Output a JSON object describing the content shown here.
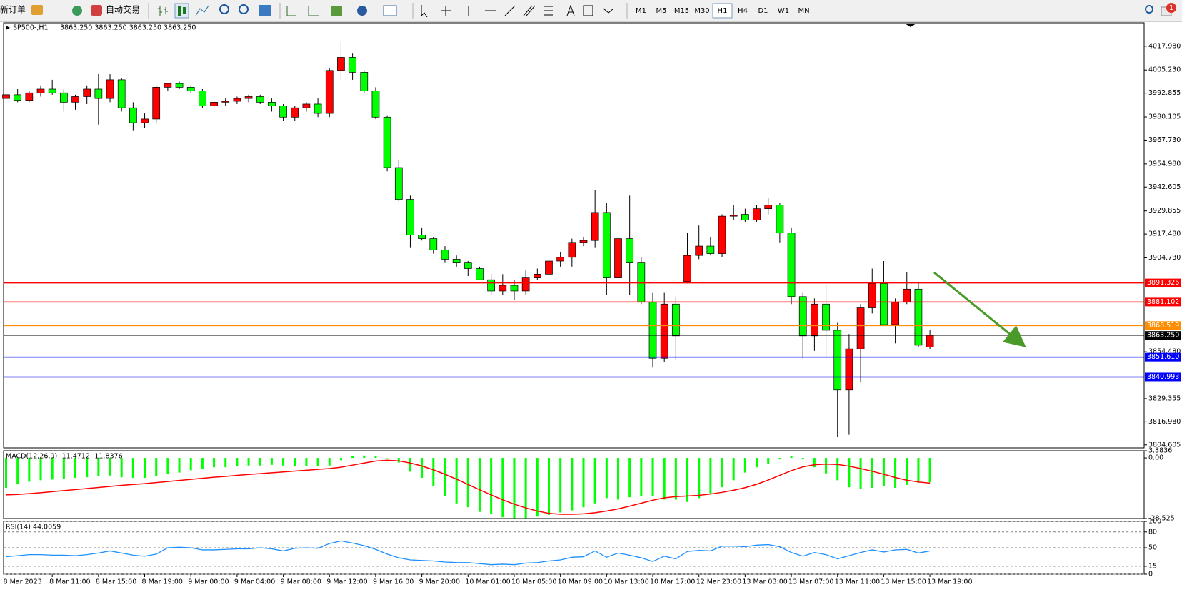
{
  "toolbar": {
    "new_order": "新订单",
    "auto_trading": "自动交易",
    "timeframes": [
      "M1",
      "M5",
      "M15",
      "M30",
      "H1",
      "H4",
      "D1",
      "W1",
      "MN"
    ],
    "active_timeframe": "H1",
    "notifications": 1
  },
  "chart_data": [
    {
      "type": "candlestick",
      "title": "SP500-,H1",
      "quote": "3863.250 3863.250 3863.250 3863.250",
      "up_color": "#ff0000",
      "down_color": "#00ff00",
      "grid": false,
      "ylim": [
        3803.0,
        4030.5
      ],
      "yticks": [
        {
          "value": 4017.98,
          "label": "4017.980"
        },
        {
          "value": 4005.23,
          "label": "4005.230"
        },
        3992.855,
        3980.105,
        {
          "value": 3967.73,
          "label": "3967.730"
        },
        {
          "value": 3954.98,
          "label": "3954.980"
        },
        3942.605,
        3929.855,
        {
          "value": 3917.48,
          "label": "3917.480"
        },
        {
          "value": 3904.73,
          "label": "3904.730"
        },
        {
          "value": 3854.48,
          "label": "3854.480"
        },
        3829.355,
        {
          "value": 3816.98,
          "label": "3816.980"
        },
        3804.605
      ],
      "categories": [
        "8 Mar 2023",
        null,
        null,
        null,
        "8 Mar 11:00",
        null,
        null,
        null,
        "8 Mar 15:00",
        null,
        null,
        null,
        "8 Mar 19:00",
        null,
        null,
        null,
        "9 Mar 00:00",
        null,
        null,
        null,
        "9 Mar 04:00",
        null,
        null,
        null,
        "9 Mar 08:00",
        null,
        null,
        null,
        "9 Mar 12:00",
        null,
        null,
        null,
        "9 Mar 16:00",
        null,
        null,
        null,
        "9 Mar 20:00",
        null,
        null,
        null,
        "10 Mar 01:00",
        null,
        null,
        null,
        "10 Mar 05:00",
        null,
        null,
        null,
        "10 Mar 09:00",
        null,
        null,
        null,
        "10 Mar 13:00",
        null,
        null,
        null,
        "10 Mar 17:00",
        null,
        null,
        null,
        "12 Mar 23:00",
        null,
        null,
        null,
        "13 Mar 03:00",
        null,
        null,
        null,
        "13 Mar 07:00",
        null,
        null,
        null,
        "13 Mar 11:00",
        null,
        null,
        null,
        "13 Mar 15:00",
        null,
        null,
        null,
        "13 Mar 19:00"
      ],
      "open": [
        3990,
        3992,
        3989,
        3993,
        3995,
        3993,
        3988,
        3991,
        3995,
        3990,
        4000,
        3985,
        3977,
        3979,
        3996,
        3998,
        3996,
        3994,
        3986,
        3988,
        3988.5,
        3990,
        3991,
        3988,
        3986,
        3980,
        3985,
        3987,
        3982,
        4005,
        4012,
        4004,
        3994,
        3980,
        3953,
        3936,
        3917,
        3915,
        3909,
        3904,
        3902,
        3899,
        3893,
        3887,
        3890,
        3887,
        3894,
        3896,
        3903,
        3905,
        3913,
        3914,
        3929,
        3894,
        3915,
        3902,
        3881,
        3851,
        3880,
        3892,
        3906,
        3911,
        3907,
        3927,
        3928,
        3925,
        3931,
        3933,
        3918,
        3884,
        3863,
        3880,
        3866,
        3834,
        3856,
        3878,
        3891,
        3869,
        3881,
        3888,
        3857
      ],
      "high": [
        3994,
        3995,
        3994,
        3997,
        4000,
        3995,
        3992,
        3997,
        4003,
        4003,
        4001,
        3988,
        3982,
        3997,
        3998,
        3999,
        3997,
        3995,
        3989,
        3990,
        3991,
        3992,
        3992,
        3990,
        3987,
        3986,
        3988,
        3990,
        4006,
        4020,
        4014,
        4005,
        3996,
        3981,
        3957,
        3938,
        3921,
        3916,
        3911,
        3906,
        3903,
        3900,
        3896,
        3896,
        3893,
        3898,
        3899,
        3906,
        3908,
        3915,
        3916,
        3941,
        3934,
        3916,
        3938,
        3905,
        3886,
        3886,
        3884,
        3918,
        3922,
        3916,
        3928,
        3933,
        3931,
        3933,
        3937,
        3934,
        3921,
        3886,
        3883,
        3890,
        3870,
        3864,
        3880,
        3899,
        3903,
        3883,
        3897,
        3892,
        3866
      ],
      "low": [
        3987,
        3988,
        3988,
        3991,
        3992,
        3983,
        3984,
        3987,
        3976,
        3988,
        3983,
        3973,
        3974,
        3977,
        3994,
        3995,
        3993,
        3985,
        3985,
        3986,
        3987,
        3988,
        3987,
        3983,
        3978,
        3978,
        3983,
        3980,
        3980,
        4000,
        4000,
        3993,
        3979,
        3951,
        3935,
        3910,
        3914,
        3907,
        3902,
        3900,
        3895,
        3893,
        3885,
        3885,
        3882,
        3885,
        3893,
        3894,
        3900,
        3900,
        3911,
        3910,
        3885,
        3886,
        3885,
        3880,
        3846,
        3849,
        3850,
        3891,
        3904,
        3906,
        3905,
        3925,
        3924,
        3924,
        3928,
        3913,
        3880,
        3851,
        3855,
        3851,
        3809,
        3810,
        3838,
        3875,
        3869,
        3859,
        3880,
        3857,
        3856
      ],
      "close": [
        3992,
        3989,
        3993,
        3995,
        3993,
        3988,
        3991,
        3995,
        3990,
        4000,
        3985,
        3977,
        3979,
        3996,
        3998,
        3996,
        3994,
        3986,
        3988,
        3988.5,
        3990,
        3991,
        3988,
        3986,
        3980,
        3985,
        3987,
        3982,
        4005,
        4012,
        4004,
        3994,
        3980,
        3953,
        3936,
        3917,
        3915,
        3909,
        3904,
        3902,
        3899,
        3893,
        3887,
        3890,
        3887,
        3894,
        3896,
        3903,
        3905,
        3913,
        3914,
        3929,
        3894,
        3915,
        3902,
        3881,
        3851,
        3880,
        3863,
        3906,
        3911,
        3907,
        3927,
        3927.5,
        3925,
        3931,
        3933,
        3918,
        3884,
        3863,
        3880,
        3866,
        3834,
        3856,
        3878,
        3891,
        3869,
        3881,
        3888,
        3858,
        3863.25
      ],
      "levels": [
        {
          "value": 3891.326,
          "label": "3891.326",
          "color": "#ff0000"
        },
        {
          "value": 3881.102,
          "label": "3881.102",
          "color": "#ff0000"
        },
        {
          "value": 3868.519,
          "label": "3868.519",
          "color": "#ff8c00"
        },
        {
          "value": 3863.25,
          "label": "3863.250",
          "color": "#000000"
        },
        {
          "value": 3851.61,
          "label": "3851.610",
          "color": "#0000ff"
        },
        {
          "value": 3840.993,
          "label": "3840.993",
          "color": "#0000ff"
        }
      ]
    },
    {
      "type": "macd",
      "title": "MACD(12,26,9) -11.4712 -11.8376",
      "color": "#00ff00",
      "signal_color": "#ff0000",
      "grid": false,
      "ylim": [
        -28.525,
        3.3836
      ],
      "yticks": [
        3.3836,
        {
          "value": 0,
          "label": "0.00"
        },
        -28.525
      ],
      "values": [
        -14.1,
        -12.3,
        -11.2,
        -10.5,
        -10.2,
        -9.8,
        -9.4,
        -9.1,
        -8.7,
        -8.3,
        -9.1,
        -9.4,
        -9.4,
        -8.7,
        -7.6,
        -6.9,
        -5.8,
        -5.1,
        -4.4,
        -4.4,
        -4.0,
        -3.6,
        -3.6,
        -3.3,
        -3.6,
        -4.0,
        -4.0,
        -4.0,
        -3.6,
        -1.1,
        0.7,
        1.1,
        0.7,
        0,
        -2.2,
        -6.5,
        -9.4,
        -13.4,
        -17.8,
        -21.4,
        -23.2,
        -25.4,
        -26.5,
        -27.9,
        -28.3,
        -28.3,
        -27.6,
        -26.8,
        -25.7,
        -24.7,
        -23.2,
        -21.4,
        -18.9,
        -19.6,
        -18.5,
        -18.1,
        -18.1,
        -19.6,
        -19.6,
        -20.7,
        -18.9,
        -16.7,
        -13.8,
        -10.5,
        -6.9,
        -4.4,
        -2.9,
        -0.7,
        0.7,
        -0.7,
        -4.4,
        -7.3,
        -10.5,
        -13.8,
        -14.5,
        -14.1,
        -13.4,
        -14.1,
        -12.7,
        -11.6,
        -11.4712
      ],
      "signal": [
        -17.4,
        -17.2,
        -16.8,
        -16.4,
        -15.9,
        -15.4,
        -14.9,
        -14.4,
        -13.9,
        -13.4,
        -12.9,
        -12.5,
        -12.1,
        -11.6,
        -11.1,
        -10.6,
        -10.1,
        -9.6,
        -9.1,
        -8.7,
        -8.2,
        -7.8,
        -7.4,
        -7.0,
        -6.6,
        -6.2,
        -5.8,
        -5.4,
        -5.0,
        -4.4,
        -3.4,
        -2.4,
        -1.5,
        -1.1,
        -1.4,
        -2.4,
        -3.8,
        -5.6,
        -7.7,
        -10.0,
        -12.5,
        -15.0,
        -17.4,
        -19.7,
        -21.8,
        -23.5,
        -25.0,
        -26.1,
        -26.5,
        -26.5,
        -26.3,
        -25.8,
        -25.0,
        -24.0,
        -22.7,
        -21.3,
        -19.9,
        -18.8,
        -18.2,
        -17.9,
        -17.6,
        -17.0,
        -16.2,
        -15.2,
        -14.0,
        -12.4,
        -10.4,
        -8.2,
        -6.0,
        -4.2,
        -3.2,
        -2.9,
        -3.1,
        -3.9,
        -5.0,
        -6.3,
        -7.7,
        -9.2,
        -10.5,
        -11.3,
        -11.8376
      ]
    },
    {
      "type": "line",
      "title": "RSI(14) 44.0059",
      "color": "#1e90ff",
      "grid": true,
      "ylim": [
        0,
        100
      ],
      "yticks": [
        100,
        80,
        50,
        15,
        0
      ],
      "values": [
        33,
        35,
        37,
        37,
        36,
        36,
        35,
        37,
        40,
        44,
        40,
        36,
        34,
        38,
        50,
        51,
        50,
        46,
        46,
        47,
        48,
        48,
        50,
        48,
        44,
        49,
        50,
        49,
        58,
        63,
        59,
        54,
        47,
        38,
        31,
        27,
        26,
        25,
        23,
        22,
        22,
        20,
        18,
        19,
        18,
        21,
        22,
        25,
        27,
        32,
        33,
        44,
        32,
        40,
        36,
        31,
        24,
        34,
        29,
        43,
        45,
        44,
        53,
        53,
        52,
        55,
        56,
        52,
        41,
        34,
        41,
        37,
        29,
        35,
        41,
        46,
        42,
        46,
        47,
        40,
        44.0059
      ]
    }
  ]
}
